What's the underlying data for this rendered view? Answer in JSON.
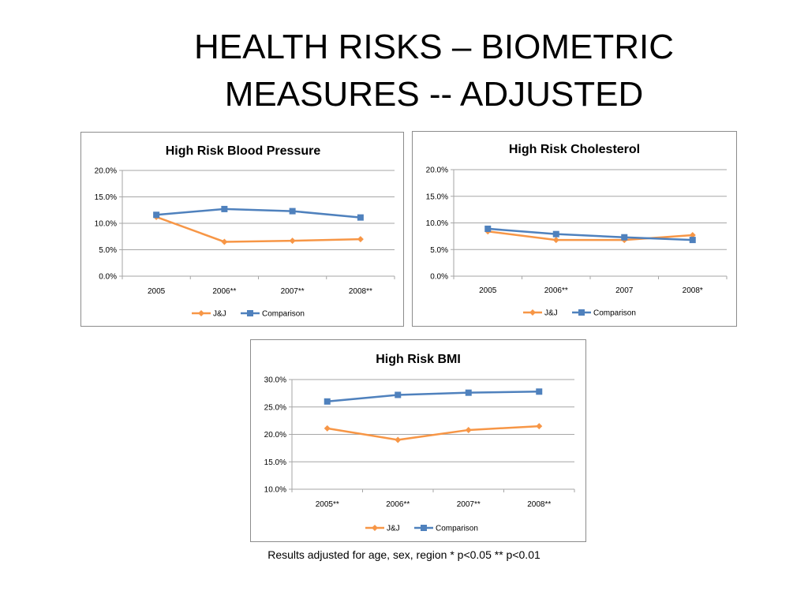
{
  "slide": {
    "title_line1": "HEALTH RISKS – BIOMETRIC",
    "title_line2": "MEASURES -- ADJUSTED",
    "footnote": "Results adjusted for age, sex, region * p<0.05 ** p<0.01"
  },
  "colors": {
    "jj": "#f79646",
    "comparison": "#4f81bd",
    "grid": "#a6a6a6",
    "border": "#8c8c8c"
  },
  "chart_data": [
    {
      "type": "line",
      "title": "High Risk Blood Pressure",
      "categories": [
        "2005",
        "2006**",
        "2007**",
        "2008**"
      ],
      "ylim": [
        0,
        20
      ],
      "yticks": [
        "0.0%",
        "5.0%",
        "10.0%",
        "15.0%",
        "20.0%"
      ],
      "ytick_values": [
        0,
        5,
        10,
        15,
        20
      ],
      "grid": true,
      "legend_position": "bottom",
      "series": [
        {
          "name": "J&J",
          "marker": "diamond",
          "color_key": "jj",
          "values": [
            11.2,
            6.5,
            6.7,
            7.0
          ]
        },
        {
          "name": "Comparison",
          "marker": "square",
          "color_key": "comparison",
          "values": [
            11.6,
            12.7,
            12.3,
            11.1
          ]
        }
      ]
    },
    {
      "type": "line",
      "title": "High Risk Cholesterol",
      "categories": [
        "2005",
        "2006**",
        "2007",
        "2008*"
      ],
      "ylim": [
        0,
        20
      ],
      "yticks": [
        "0.0%",
        "5.0%",
        "10.0%",
        "15.0%",
        "20.0%"
      ],
      "ytick_values": [
        0,
        5,
        10,
        15,
        20
      ],
      "grid": true,
      "legend_position": "bottom",
      "series": [
        {
          "name": "J&J",
          "marker": "diamond",
          "color_key": "jj",
          "values": [
            8.4,
            6.8,
            6.8,
            7.7
          ]
        },
        {
          "name": "Comparison",
          "marker": "square",
          "color_key": "comparison",
          "values": [
            8.9,
            7.9,
            7.3,
            6.8
          ]
        }
      ]
    },
    {
      "type": "line",
      "title": "High Risk BMI",
      "categories": [
        "2005**",
        "2006**",
        "2007**",
        "2008**"
      ],
      "ylim": [
        10,
        30
      ],
      "yticks": [
        "10.0%",
        "15.0%",
        "20.0%",
        "25.0%",
        "30.0%"
      ],
      "ytick_values": [
        10,
        15,
        20,
        25,
        30
      ],
      "grid": true,
      "legend_position": "bottom",
      "series": [
        {
          "name": "J&J",
          "marker": "diamond",
          "color_key": "jj",
          "values": [
            21.1,
            19.0,
            20.8,
            21.5
          ]
        },
        {
          "name": "Comparison",
          "marker": "square",
          "color_key": "comparison",
          "values": [
            26.0,
            27.2,
            27.6,
            27.8
          ]
        }
      ]
    }
  ]
}
